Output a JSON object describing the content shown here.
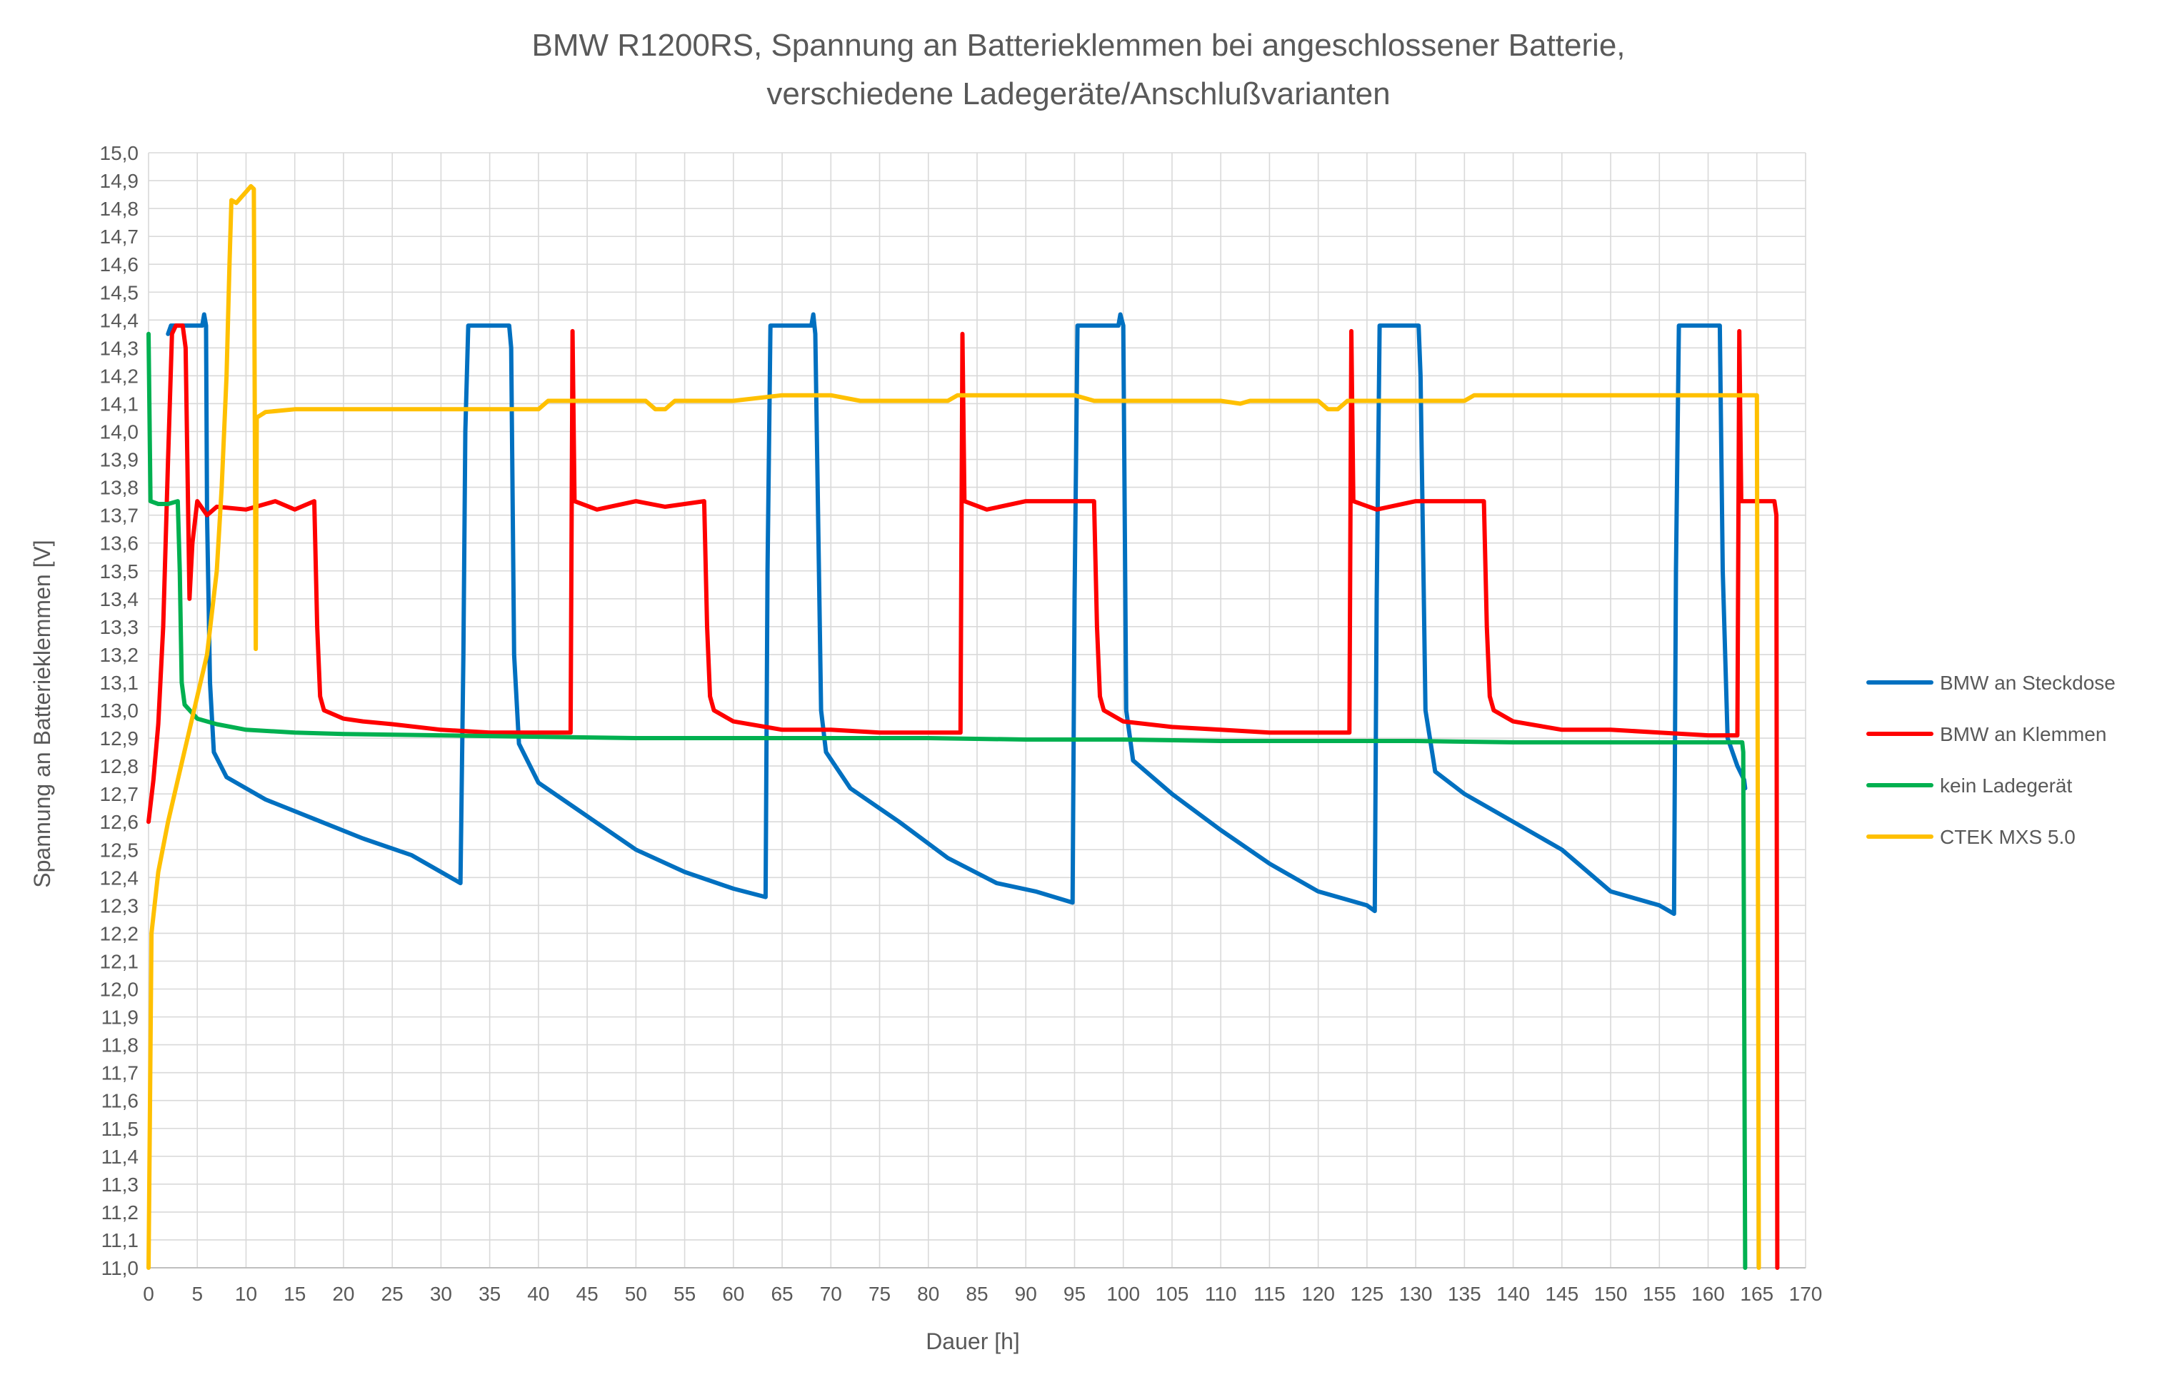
{
  "chart_data": {
    "type": "line",
    "title": [
      "BMW R1200RS, Spannung an Batterieklemmen bei angeschlossener Batterie,",
      "verschiedene Ladegeräte/Anschlußvarianten"
    ],
    "xlabel": "Dauer [h]",
    "ylabel": "Spannung an Batterieklemmen [V]",
    "xlim": [
      0,
      170
    ],
    "ylim": [
      11.0,
      15.0
    ],
    "x_ticks": [
      0,
      5,
      10,
      15,
      20,
      25,
      30,
      35,
      40,
      45,
      50,
      55,
      60,
      65,
      70,
      75,
      80,
      85,
      90,
      95,
      100,
      105,
      110,
      115,
      120,
      125,
      130,
      135,
      140,
      145,
      150,
      155,
      160,
      165,
      170
    ],
    "x_tick_labels": [
      "0",
      "5",
      "10",
      "15",
      "20",
      "25",
      "30",
      "35",
      "40",
      "45",
      "50",
      "55",
      "60",
      "65",
      "70",
      "75",
      "80",
      "85",
      "90",
      "95",
      "100",
      "105",
      "110",
      "115",
      "120",
      "125",
      "130",
      "135",
      "140",
      "145",
      "150",
      "155",
      "160",
      "165",
      "170"
    ],
    "y_ticks": [
      11.0,
      11.1,
      11.2,
      11.3,
      11.4,
      11.5,
      11.6,
      11.7,
      11.8,
      11.9,
      12.0,
      12.1,
      12.2,
      12.3,
      12.4,
      12.5,
      12.6,
      12.7,
      12.8,
      12.9,
      13.0,
      13.1,
      13.2,
      13.3,
      13.4,
      13.5,
      13.6,
      13.7,
      13.8,
      13.9,
      14.0,
      14.1,
      14.2,
      14.3,
      14.4,
      14.5,
      14.6,
      14.7,
      14.8,
      14.9,
      15.0
    ],
    "y_tick_labels": [
      "11,0",
      "11,1",
      "11,2",
      "11,3",
      "11,4",
      "11,5",
      "11,6",
      "11,7",
      "11,8",
      "11,9",
      "12,0",
      "12,1",
      "12,2",
      "12,3",
      "12,4",
      "12,5",
      "12,6",
      "12,7",
      "12,8",
      "12,9",
      "13,0",
      "13,1",
      "13,2",
      "13,3",
      "13,4",
      "13,5",
      "13,6",
      "13,7",
      "13,8",
      "13,9",
      "14,0",
      "14,1",
      "14,2",
      "14,3",
      "14,4",
      "14,5",
      "14,6",
      "14,7",
      "14,8",
      "14,9",
      "15,0"
    ],
    "grid": true,
    "legend_position": "right",
    "series": [
      {
        "name": "BMW an Steckdose",
        "color": "#0070C0",
        "points": [
          [
            2,
            14.35
          ],
          [
            2.3,
            14.38
          ],
          [
            5.5,
            14.38
          ],
          [
            5.7,
            14.42
          ],
          [
            5.9,
            14.38
          ],
          [
            6,
            13.7
          ],
          [
            6.3,
            13.1
          ],
          [
            6.7,
            12.85
          ],
          [
            8,
            12.76
          ],
          [
            12,
            12.68
          ],
          [
            17,
            12.61
          ],
          [
            22,
            12.54
          ],
          [
            27,
            12.48
          ],
          [
            32,
            12.38
          ],
          [
            32.3,
            13.2
          ],
          [
            32.5,
            14.0
          ],
          [
            32.8,
            14.38
          ],
          [
            37,
            14.38
          ],
          [
            37.2,
            14.3
          ],
          [
            37.5,
            13.2
          ],
          [
            38,
            12.88
          ],
          [
            40,
            12.74
          ],
          [
            45,
            12.62
          ],
          [
            50,
            12.5
          ],
          [
            55,
            12.42
          ],
          [
            60,
            12.36
          ],
          [
            63.3,
            12.33
          ],
          [
            63.5,
            13.5
          ],
          [
            63.8,
            14.38
          ],
          [
            68,
            14.38
          ],
          [
            68.2,
            14.42
          ],
          [
            68.4,
            14.35
          ],
          [
            69,
            13.0
          ],
          [
            69.5,
            12.85
          ],
          [
            72,
            12.72
          ],
          [
            77,
            12.6
          ],
          [
            82,
            12.47
          ],
          [
            87,
            12.38
          ],
          [
            91,
            12.35
          ],
          [
            94.8,
            12.31
          ],
          [
            95,
            13.4
          ],
          [
            95.3,
            14.38
          ],
          [
            99.5,
            14.38
          ],
          [
            99.7,
            14.42
          ],
          [
            100,
            14.38
          ],
          [
            100.3,
            13.0
          ],
          [
            101,
            12.82
          ],
          [
            105,
            12.7
          ],
          [
            110,
            12.57
          ],
          [
            115,
            12.45
          ],
          [
            120,
            12.35
          ],
          [
            125,
            12.3
          ],
          [
            125.8,
            12.28
          ],
          [
            126,
            13.4
          ],
          [
            126.3,
            14.38
          ],
          [
            130.3,
            14.38
          ],
          [
            130.5,
            14.2
          ],
          [
            131,
            13.0
          ],
          [
            132,
            12.78
          ],
          [
            135,
            12.7
          ],
          [
            140,
            12.6
          ],
          [
            145,
            12.5
          ],
          [
            150,
            12.35
          ],
          [
            155,
            12.3
          ],
          [
            156.5,
            12.27
          ],
          [
            156.7,
            13.5
          ],
          [
            157,
            14.38
          ],
          [
            161.2,
            14.38
          ],
          [
            161.5,
            13.5
          ],
          [
            162,
            12.9
          ],
          [
            163,
            12.8
          ],
          [
            163.7,
            12.75
          ],
          [
            163.8,
            12.72
          ]
        ]
      },
      {
        "name": "BMW an Klemmen",
        "color": "#FF0000",
        "points": [
          [
            0,
            12.6
          ],
          [
            0.5,
            12.75
          ],
          [
            1,
            12.95
          ],
          [
            1.5,
            13.3
          ],
          [
            2,
            13.9
          ],
          [
            2.4,
            14.35
          ],
          [
            2.8,
            14.38
          ],
          [
            3.5,
            14.38
          ],
          [
            3.8,
            14.3
          ],
          [
            4.2,
            13.4
          ],
          [
            4.5,
            13.6
          ],
          [
            5,
            13.75
          ],
          [
            6,
            13.7
          ],
          [
            7,
            13.73
          ],
          [
            10,
            13.72
          ],
          [
            13,
            13.75
          ],
          [
            15,
            13.72
          ],
          [
            17,
            13.75
          ],
          [
            17.3,
            13.3
          ],
          [
            17.6,
            13.05
          ],
          [
            18,
            13.0
          ],
          [
            20,
            12.97
          ],
          [
            22,
            12.96
          ],
          [
            25,
            12.95
          ],
          [
            30,
            12.93
          ],
          [
            35,
            12.92
          ],
          [
            40,
            12.92
          ],
          [
            43.3,
            12.92
          ],
          [
            43.5,
            14.36
          ],
          [
            43.7,
            13.75
          ],
          [
            46,
            13.72
          ],
          [
            50,
            13.75
          ],
          [
            53,
            13.73
          ],
          [
            57,
            13.75
          ],
          [
            57.3,
            13.3
          ],
          [
            57.6,
            13.05
          ],
          [
            58,
            13.0
          ],
          [
            60,
            12.96
          ],
          [
            65,
            12.93
          ],
          [
            70,
            12.93
          ],
          [
            75,
            12.92
          ],
          [
            80,
            12.92
          ],
          [
            83.3,
            12.92
          ],
          [
            83.5,
            14.35
          ],
          [
            83.7,
            13.75
          ],
          [
            86,
            13.72
          ],
          [
            90,
            13.75
          ],
          [
            95,
            13.75
          ],
          [
            97,
            13.75
          ],
          [
            97.3,
            13.3
          ],
          [
            97.6,
            13.05
          ],
          [
            98,
            13.0
          ],
          [
            100,
            12.96
          ],
          [
            105,
            12.94
          ],
          [
            110,
            12.93
          ],
          [
            115,
            12.92
          ],
          [
            120,
            12.92
          ],
          [
            123.2,
            12.92
          ],
          [
            123.4,
            14.36
          ],
          [
            123.6,
            13.75
          ],
          [
            126,
            13.72
          ],
          [
            130,
            13.75
          ],
          [
            135,
            13.75
          ],
          [
            137,
            13.75
          ],
          [
            137.3,
            13.3
          ],
          [
            137.6,
            13.05
          ],
          [
            138,
            13.0
          ],
          [
            140,
            12.96
          ],
          [
            145,
            12.93
          ],
          [
            150,
            12.93
          ],
          [
            155,
            12.92
          ],
          [
            160,
            12.91
          ],
          [
            163,
            12.91
          ],
          [
            163.2,
            14.36
          ],
          [
            163.4,
            13.75
          ],
          [
            166,
            13.75
          ],
          [
            166.8,
            13.75
          ],
          [
            167,
            13.7
          ],
          [
            167.1,
            11.0
          ]
        ]
      },
      {
        "name": "kein Ladegerät",
        "color": "#00B050",
        "points": [
          [
            0,
            14.35
          ],
          [
            0.2,
            13.75
          ],
          [
            1,
            13.74
          ],
          [
            2,
            13.74
          ],
          [
            3,
            13.75
          ],
          [
            3.2,
            13.5
          ],
          [
            3.4,
            13.1
          ],
          [
            3.7,
            13.02
          ],
          [
            5,
            12.97
          ],
          [
            7,
            12.95
          ],
          [
            10,
            12.93
          ],
          [
            15,
            12.92
          ],
          [
            20,
            12.915
          ],
          [
            30,
            12.91
          ],
          [
            40,
            12.905
          ],
          [
            50,
            12.9
          ],
          [
            60,
            12.9
          ],
          [
            70,
            12.9
          ],
          [
            80,
            12.9
          ],
          [
            90,
            12.895
          ],
          [
            100,
            12.895
          ],
          [
            110,
            12.89
          ],
          [
            120,
            12.89
          ],
          [
            130,
            12.89
          ],
          [
            140,
            12.885
          ],
          [
            150,
            12.885
          ],
          [
            160,
            12.885
          ],
          [
            163.5,
            12.885
          ],
          [
            163.6,
            12.85
          ],
          [
            163.8,
            11.0
          ]
        ]
      },
      {
        "name": "CTEK MXS 5.0",
        "color": "#FFC000",
        "points": [
          [
            0,
            11.0
          ],
          [
            0.3,
            12.2
          ],
          [
            1,
            12.42
          ],
          [
            2,
            12.6
          ],
          [
            3,
            12.75
          ],
          [
            4,
            12.9
          ],
          [
            5,
            13.05
          ],
          [
            6,
            13.2
          ],
          [
            7,
            13.5
          ],
          [
            7.5,
            13.8
          ],
          [
            8,
            14.2
          ],
          [
            8.3,
            14.6
          ],
          [
            8.5,
            14.83
          ],
          [
            9,
            14.82
          ],
          [
            9.5,
            14.84
          ],
          [
            10,
            14.86
          ],
          [
            10.5,
            14.88
          ],
          [
            10.8,
            14.87
          ],
          [
            11,
            13.22
          ],
          [
            11.1,
            14.05
          ],
          [
            12,
            14.07
          ],
          [
            15,
            14.08
          ],
          [
            20,
            14.08
          ],
          [
            30,
            14.08
          ],
          [
            40,
            14.08
          ],
          [
            41,
            14.11
          ],
          [
            45,
            14.11
          ],
          [
            51,
            14.11
          ],
          [
            52,
            14.08
          ],
          [
            53,
            14.08
          ],
          [
            54,
            14.11
          ],
          [
            60,
            14.11
          ],
          [
            65,
            14.13
          ],
          [
            70,
            14.13
          ],
          [
            73,
            14.11
          ],
          [
            75,
            14.11
          ],
          [
            82,
            14.11
          ],
          [
            83,
            14.13
          ],
          [
            90,
            14.13
          ],
          [
            95,
            14.13
          ],
          [
            97,
            14.11
          ],
          [
            110,
            14.11
          ],
          [
            112,
            14.1
          ],
          [
            113,
            14.11
          ],
          [
            120,
            14.11
          ],
          [
            121,
            14.08
          ],
          [
            122,
            14.08
          ],
          [
            123,
            14.11
          ],
          [
            135,
            14.11
          ],
          [
            136,
            14.13
          ],
          [
            150,
            14.13
          ],
          [
            160,
            14.13
          ],
          [
            165,
            14.13
          ],
          [
            165.2,
            11.0
          ]
        ]
      }
    ]
  }
}
